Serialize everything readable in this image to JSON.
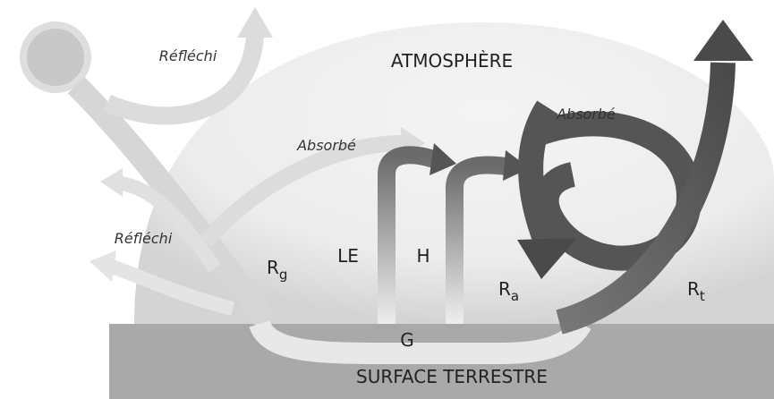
{
  "labels": {
    "reflected_top": "Réfléchi",
    "atmosphere": "ATMOSPHÈRE",
    "absorbed_right": "Absorbé",
    "absorbed_left": "Absorbé",
    "reflected_left": "Réfléchi",
    "rg": {
      "main": "R",
      "sub": "g"
    },
    "le": "LE",
    "h": "H",
    "ra": {
      "main": "R",
      "sub": "a"
    },
    "rt": {
      "main": "R",
      "sub": "t"
    },
    "g": "G",
    "surface": "SURFACE TERRESTRE"
  }
}
